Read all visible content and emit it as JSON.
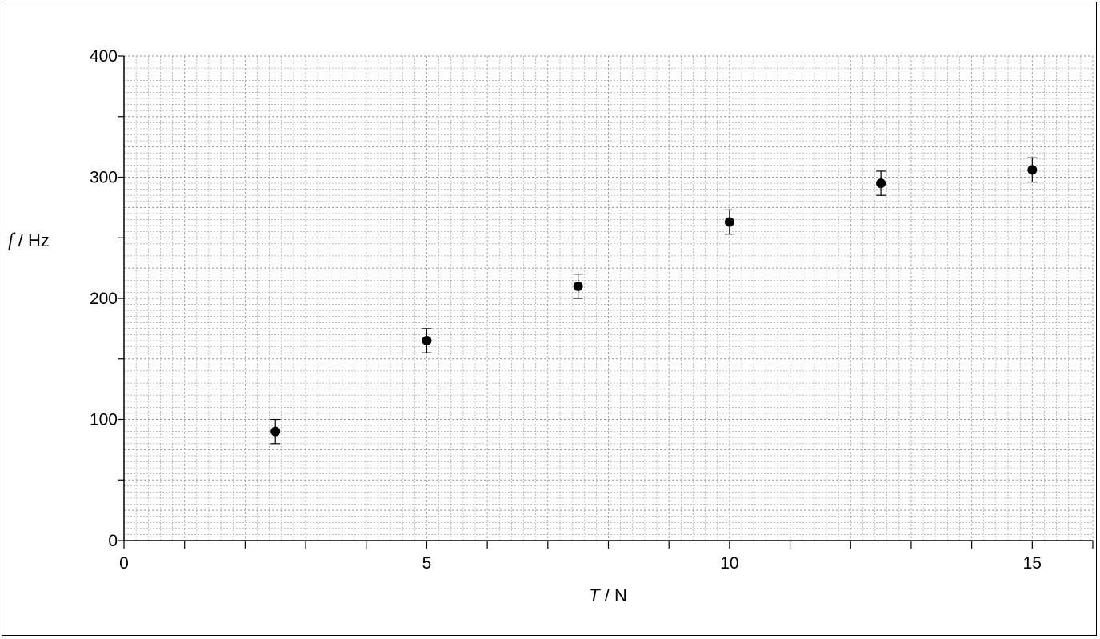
{
  "chart_data": {
    "type": "scatter",
    "title": "",
    "xlabel": {
      "symbol": "T",
      "unit": " / N"
    },
    "ylabel": {
      "symbol": "f",
      "unit": " / Hz"
    },
    "xlim": [
      0,
      16
    ],
    "ylim": [
      0,
      400
    ],
    "x_ticks": [
      0,
      5,
      10,
      15
    ],
    "y_ticks": [
      0,
      100,
      200,
      300,
      400
    ],
    "grid": true,
    "error_bars": true,
    "series": [
      {
        "points": [
          {
            "x": 2.5,
            "y": 90,
            "err": 10
          },
          {
            "x": 5,
            "y": 165,
            "err": 10
          },
          {
            "x": 7.5,
            "y": 210,
            "err": 10
          },
          {
            "x": 10,
            "y": 263,
            "err": 10
          },
          {
            "x": 12.5,
            "y": 295,
            "err": 10
          },
          {
            "x": 15,
            "y": 306,
            "err": 10
          }
        ]
      }
    ],
    "colors": {
      "marker": "#000000",
      "grid": "#9a9a9a",
      "axis": "#000000"
    }
  }
}
